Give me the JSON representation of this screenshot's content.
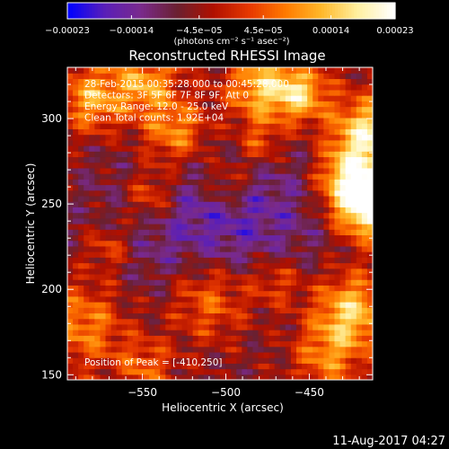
{
  "chart_data": {
    "type": "heatmap",
    "title": "Reconstructed RHESSI Image",
    "xlabel": "Heliocentric X (arcsec)",
    "ylabel": "Heliocentric Y (arcsec)",
    "xlim": [
      -595,
      -412
    ],
    "ylim": [
      147,
      330
    ],
    "x_ticks": [
      -550,
      -500,
      -450
    ],
    "y_ticks": [
      150,
      200,
      250,
      300
    ],
    "x_tick_labels": [
      "−550",
      "−500",
      "−450"
    ],
    "y_tick_labels": [
      "150",
      "200",
      "250",
      "300"
    ],
    "grid": false,
    "colorbar": {
      "range": [
        -0.00023,
        0.00023
      ],
      "ticks": [
        -0.00023,
        -0.00014,
        -4.5e-05,
        4.5e-05,
        0.00014,
        0.00023
      ],
      "tick_labels": [
        "−0.00023",
        "−0.00014",
        "−4.5e−05",
        "4.5e−05",
        "0.00014",
        "0.00023"
      ],
      "units_label": "(photons cm⁻² s⁻¹ asec⁻²)",
      "colormap": [
        "#0000ff",
        "#5a1fb8",
        "#7a2a8c",
        "#6a2030",
        "#b01000",
        "#e63800",
        "#ff7a00",
        "#ffb82a",
        "#fff0a0",
        "#ffffff"
      ]
    },
    "annotations": [
      "28-Feb-2015 00:35:28.000 to 00:45:28.000",
      "Detectors: 3F 5F 6F 7F 8F 9F, Att 0",
      "Energy Range: 12.0 - 25.0 keV",
      "Clean    Total counts: 1.92E+04"
    ],
    "peak_label": "Position of Peak = [-410,250]",
    "peak_position": [
      -410,
      250
    ]
  },
  "footer": {
    "timestamp": "11-Aug-2017 04:27"
  }
}
